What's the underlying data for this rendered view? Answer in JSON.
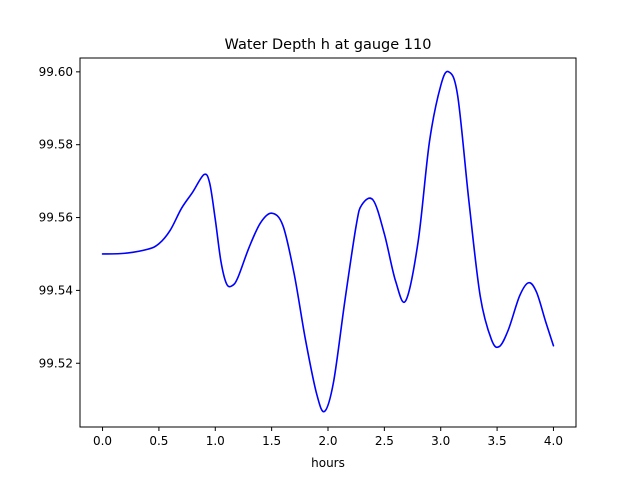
{
  "chart_data": {
    "type": "line",
    "title": "Water Depth h at gauge 110",
    "xlabel": "hours",
    "ylabel": "",
    "xlim": [
      -0.2,
      4.2
    ],
    "ylim": [
      99.5025,
      99.6038
    ],
    "x_ticks": [
      0.0,
      0.5,
      1.0,
      1.5,
      2.0,
      2.5,
      3.0,
      3.5,
      4.0
    ],
    "x_tick_labels": [
      "0.0",
      "0.5",
      "1.0",
      "1.5",
      "2.0",
      "2.5",
      "3.0",
      "3.5",
      "4.0"
    ],
    "y_ticks": [
      99.52,
      99.54,
      99.56,
      99.58,
      99.6
    ],
    "y_tick_labels": [
      "99.52",
      "99.54",
      "99.56",
      "99.58",
      "99.60"
    ],
    "grid": false,
    "line_color": "#0000ff",
    "series": [
      {
        "x": [
          0.0,
          0.2,
          0.4,
          0.5,
          0.6,
          0.7,
          0.8,
          0.9,
          0.95,
          1.0,
          1.05,
          1.1,
          1.15,
          1.2,
          1.3,
          1.4,
          1.5,
          1.6,
          1.7,
          1.8,
          1.9,
          1.97,
          2.05,
          2.15,
          2.25,
          2.3,
          2.4,
          2.5,
          2.6,
          2.69,
          2.8,
          2.9,
          3.0,
          3.07,
          3.15,
          3.25,
          3.35,
          3.45,
          3.52,
          3.6,
          3.7,
          3.78,
          3.85,
          3.93,
          4.0
        ],
        "y": [
          99.55,
          99.5502,
          99.5513,
          99.5528,
          99.5565,
          99.5625,
          99.567,
          99.5718,
          99.5695,
          99.5595,
          99.548,
          99.5418,
          99.5413,
          99.5435,
          99.5518,
          99.5585,
          99.5612,
          99.5578,
          99.5445,
          99.5265,
          99.5115,
          99.5068,
          99.515,
          99.5372,
          99.5578,
          99.5635,
          99.5648,
          99.5555,
          99.5425,
          99.5372,
          99.5535,
          99.5808,
          99.5962,
          99.6,
          99.5935,
          99.5645,
          99.5385,
          99.5265,
          99.5246,
          99.5292,
          99.5385,
          99.5421,
          99.5395,
          99.5315,
          99.5248
        ]
      }
    ]
  }
}
